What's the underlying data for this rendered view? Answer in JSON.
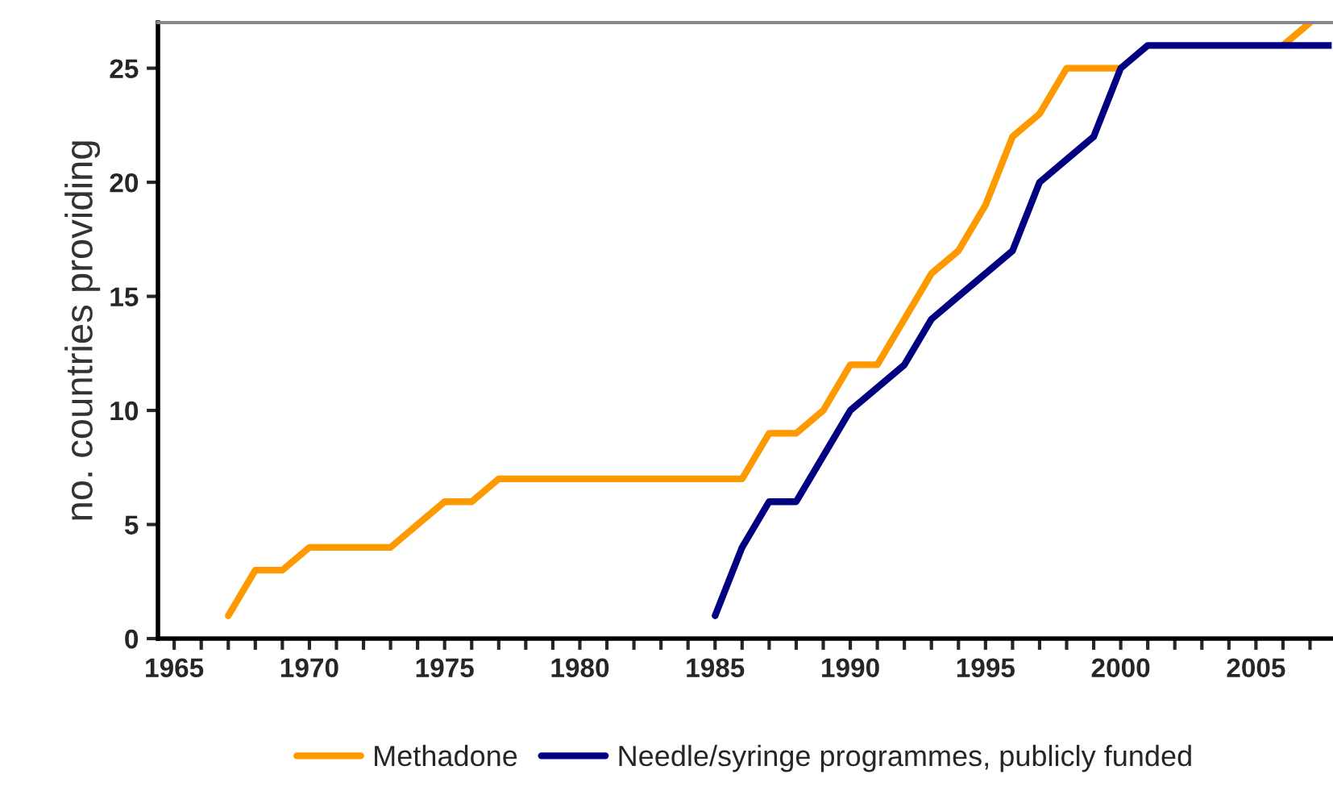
{
  "chart_data": {
    "type": "line",
    "ylabel": "no. countries providing",
    "series": [
      {
        "name": "Methadone",
        "color": "#ff9900",
        "x": [
          1967,
          1968,
          1969,
          1970,
          1971,
          1972,
          1973,
          1974,
          1975,
          1976,
          1977,
          1978,
          1979,
          1980,
          1981,
          1982,
          1983,
          1984,
          1985,
          1986,
          1987,
          1988,
          1989,
          1990,
          1991,
          1992,
          1993,
          1994,
          1995,
          1996,
          1997,
          1998,
          1999,
          2000,
          2001,
          2002,
          2003,
          2004,
          2005,
          2006,
          2007
        ],
        "values": [
          1,
          3,
          3,
          4,
          4,
          4,
          4,
          5,
          6,
          6,
          7,
          7,
          7,
          7,
          7,
          7,
          7,
          7,
          7,
          7,
          9,
          9,
          10,
          12,
          12,
          14,
          16,
          17,
          19,
          22,
          23,
          25,
          25,
          25,
          null,
          null,
          null,
          null,
          null,
          26,
          27
        ]
      },
      {
        "name": "Needle/syringe programmes, publicly funded",
        "color": "#000080",
        "x": [
          1985,
          1986,
          1987,
          1988,
          1989,
          1990,
          1991,
          1992,
          1993,
          1994,
          1995,
          1996,
          1997,
          1998,
          1999,
          2000,
          2001,
          2002,
          2003,
          2004,
          2005,
          2006,
          2007,
          2007.8
        ],
        "values": [
          1,
          4,
          6,
          6,
          8,
          10,
          11,
          12,
          14,
          15,
          16,
          17,
          20,
          21,
          22,
          25,
          26,
          26,
          26,
          26,
          26,
          26,
          26,
          26
        ]
      }
    ],
    "xlim": [
      1964.4,
      2007.8
    ],
    "ylim": [
      0,
      27
    ],
    "xticks": [
      {
        "value": 1965,
        "label": "1965"
      },
      {
        "value": 1966,
        "label": null
      },
      {
        "value": 1967,
        "label": null
      },
      {
        "value": 1968,
        "label": null
      },
      {
        "value": 1969,
        "label": null
      },
      {
        "value": 1970,
        "label": "1970"
      },
      {
        "value": 1971,
        "label": null
      },
      {
        "value": 1972,
        "label": null
      },
      {
        "value": 1973,
        "label": null
      },
      {
        "value": 1974,
        "label": null
      },
      {
        "value": 1975,
        "label": "1975"
      },
      {
        "value": 1976,
        "label": null
      },
      {
        "value": 1977,
        "label": null
      },
      {
        "value": 1978,
        "label": null
      },
      {
        "value": 1979,
        "label": null
      },
      {
        "value": 1980,
        "label": "1980"
      },
      {
        "value": 1981,
        "label": null
      },
      {
        "value": 1982,
        "label": null
      },
      {
        "value": 1983,
        "label": null
      },
      {
        "value": 1984,
        "label": null
      },
      {
        "value": 1985,
        "label": "1985"
      },
      {
        "value": 1986,
        "label": null
      },
      {
        "value": 1987,
        "label": null
      },
      {
        "value": 1988,
        "label": null
      },
      {
        "value": 1989,
        "label": null
      },
      {
        "value": 1990,
        "label": "1990"
      },
      {
        "value": 1991,
        "label": null
      },
      {
        "value": 1992,
        "label": null
      },
      {
        "value": 1993,
        "label": null
      },
      {
        "value": 1994,
        "label": null
      },
      {
        "value": 1995,
        "label": "1995"
      },
      {
        "value": 1996,
        "label": null
      },
      {
        "value": 1997,
        "label": null
      },
      {
        "value": 1998,
        "label": null
      },
      {
        "value": 1999,
        "label": null
      },
      {
        "value": 2000,
        "label": "2000"
      },
      {
        "value": 2001,
        "label": null
      },
      {
        "value": 2002,
        "label": null
      },
      {
        "value": 2003,
        "label": null
      },
      {
        "value": 2004,
        "label": null
      },
      {
        "value": 2005,
        "label": "2005"
      },
      {
        "value": 2006,
        "label": null
      },
      {
        "value": 2007,
        "label": null
      }
    ],
    "yticks": [
      0,
      5,
      10,
      15,
      20,
      25
    ],
    "legend": "bottom",
    "grid": false,
    "marker": "none",
    "line_style": "solid"
  }
}
